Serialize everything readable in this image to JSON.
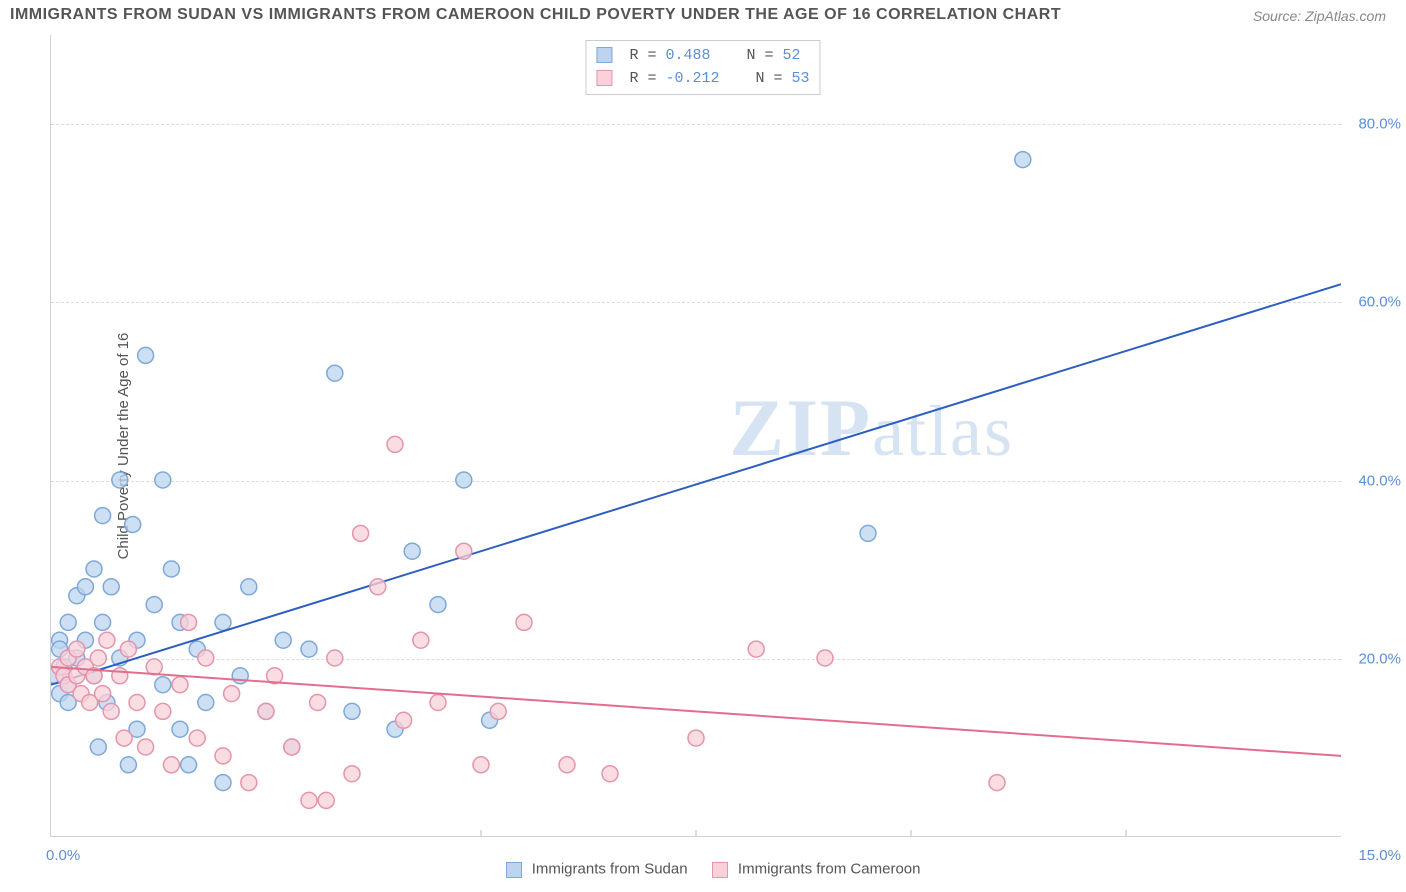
{
  "title": "IMMIGRANTS FROM SUDAN VS IMMIGRANTS FROM CAMEROON CHILD POVERTY UNDER THE AGE OF 16 CORRELATION CHART",
  "source": "Source: ZipAtlas.com",
  "watermark_zip": "ZIP",
  "watermark_rest": "atlas",
  "y_axis_label": "Child Poverty Under the Age of 16",
  "chart": {
    "type": "scatter",
    "xlim": [
      0,
      15
    ],
    "ylim": [
      0,
      90
    ],
    "x_ticks": [
      0,
      5,
      7.5,
      10,
      12.5,
      15
    ],
    "x_tick_labels": {
      "0": "0.0%",
      "15": "15.0%"
    },
    "y_ticks": [
      20,
      40,
      60,
      80
    ],
    "y_tick_labels": {
      "20": "20.0%",
      "40": "40.0%",
      "60": "60.0%",
      "80": "80.0%"
    },
    "grid_color": "#dcdcdc",
    "background_color": "#ffffff",
    "tick_label_color": "#5b8fd6",
    "tick_fontsize": 15,
    "axis_label_color": "#555555",
    "axis_label_fontsize": 15,
    "series": [
      {
        "name": "Immigrants from Sudan",
        "marker_fill": "#bcd4ef",
        "marker_stroke": "#7fa8d9",
        "marker_radius": 8,
        "marker_opacity": 0.75,
        "line_color": "#2e5fbf",
        "line_width": 2,
        "R": "0.488",
        "N": "52",
        "regression": {
          "x1": 0,
          "y1": 17,
          "x2": 15,
          "y2": 62
        },
        "points": [
          [
            0.05,
            18
          ],
          [
            0.1,
            16
          ],
          [
            0.1,
            22
          ],
          [
            0.15,
            19
          ],
          [
            0.2,
            17
          ],
          [
            0.2,
            15
          ],
          [
            0.2,
            24
          ],
          [
            0.3,
            20
          ],
          [
            0.3,
            27
          ],
          [
            0.4,
            28
          ],
          [
            0.4,
            22
          ],
          [
            0.5,
            30
          ],
          [
            0.5,
            18
          ],
          [
            0.55,
            10
          ],
          [
            0.6,
            24
          ],
          [
            0.6,
            36
          ],
          [
            0.65,
            15
          ],
          [
            0.7,
            28
          ],
          [
            0.8,
            20
          ],
          [
            0.8,
            40
          ],
          [
            0.9,
            8
          ],
          [
            0.95,
            35
          ],
          [
            1.0,
            12
          ],
          [
            1.0,
            22
          ],
          [
            1.1,
            54
          ],
          [
            1.2,
            26
          ],
          [
            1.3,
            17
          ],
          [
            1.3,
            40
          ],
          [
            1.4,
            30
          ],
          [
            1.5,
            12
          ],
          [
            1.5,
            24
          ],
          [
            1.6,
            8
          ],
          [
            1.7,
            21
          ],
          [
            1.8,
            15
          ],
          [
            2.0,
            24
          ],
          [
            2.0,
            6
          ],
          [
            2.2,
            18
          ],
          [
            2.3,
            28
          ],
          [
            2.5,
            14
          ],
          [
            2.7,
            22
          ],
          [
            2.8,
            10
          ],
          [
            3.0,
            21
          ],
          [
            3.3,
            52
          ],
          [
            3.5,
            14
          ],
          [
            4.0,
            12
          ],
          [
            4.2,
            32
          ],
          [
            4.5,
            26
          ],
          [
            4.8,
            40
          ],
          [
            5.1,
            13
          ],
          [
            9.5,
            34
          ],
          [
            11.3,
            76
          ],
          [
            0.1,
            21
          ]
        ]
      },
      {
        "name": "Immigrants from Cameroon",
        "marker_fill": "#f8d1da",
        "marker_stroke": "#e594aa",
        "marker_radius": 8,
        "marker_opacity": 0.75,
        "line_color": "#e26d8f",
        "line_width": 2,
        "R": "-0.212",
        "N": "53",
        "regression": {
          "x1": 0,
          "y1": 19,
          "x2": 15,
          "y2": 9
        },
        "points": [
          [
            0.1,
            19
          ],
          [
            0.15,
            18
          ],
          [
            0.2,
            20
          ],
          [
            0.2,
            17
          ],
          [
            0.3,
            18
          ],
          [
            0.3,
            21
          ],
          [
            0.35,
            16
          ],
          [
            0.4,
            19
          ],
          [
            0.45,
            15
          ],
          [
            0.5,
            18
          ],
          [
            0.55,
            20
          ],
          [
            0.6,
            16
          ],
          [
            0.65,
            22
          ],
          [
            0.7,
            14
          ],
          [
            0.8,
            18
          ],
          [
            0.85,
            11
          ],
          [
            0.9,
            21
          ],
          [
            1.0,
            15
          ],
          [
            1.1,
            10
          ],
          [
            1.2,
            19
          ],
          [
            1.3,
            14
          ],
          [
            1.4,
            8
          ],
          [
            1.5,
            17
          ],
          [
            1.6,
            24
          ],
          [
            1.7,
            11
          ],
          [
            1.8,
            20
          ],
          [
            2.0,
            9
          ],
          [
            2.1,
            16
          ],
          [
            2.3,
            6
          ],
          [
            2.5,
            14
          ],
          [
            2.6,
            18
          ],
          [
            2.8,
            10
          ],
          [
            3.0,
            4
          ],
          [
            3.1,
            15
          ],
          [
            3.3,
            20
          ],
          [
            3.5,
            7
          ],
          [
            3.6,
            34
          ],
          [
            3.8,
            28
          ],
          [
            4.0,
            44
          ],
          [
            4.1,
            13
          ],
          [
            4.3,
            22
          ],
          [
            4.5,
            15
          ],
          [
            4.8,
            32
          ],
          [
            5.0,
            8
          ],
          [
            5.2,
            14
          ],
          [
            5.5,
            24
          ],
          [
            6.0,
            8
          ],
          [
            6.5,
            7
          ],
          [
            7.5,
            11
          ],
          [
            8.2,
            21
          ],
          [
            9.0,
            20
          ],
          [
            11.0,
            6
          ],
          [
            3.2,
            4
          ]
        ]
      }
    ]
  },
  "legend_stats": {
    "r_label": "R =",
    "n_label": "N ="
  }
}
